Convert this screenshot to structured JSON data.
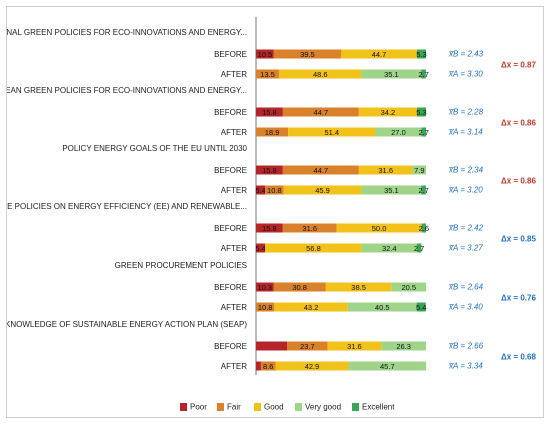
{
  "colors": {
    "Poor": "#b5262b",
    "Fair": "#d9822b",
    "Good": "#f2c21b",
    "Very good": "#9fd58a",
    "Excellent": "#3aa655",
    "mean_before": "#1f6fc5",
    "mean_after": "#1f6fc5",
    "delta_red": "#c0392b",
    "delta_blue": "#1f6fc5"
  },
  "chart_data": {
    "type": "bar",
    "stacked": true,
    "orientation": "horizontal",
    "xlim": [
      0,
      100
    ],
    "series_names": [
      "Poor",
      "Fair",
      "Good",
      "Very good",
      "Excellent"
    ],
    "legend": {
      "placement": "bottom",
      "entries": [
        "Poor",
        "Fair",
        "Good",
        "Very good",
        "Excellent"
      ]
    },
    "groups": [
      {
        "title": "NATIONAL GREEN POLICIES FOR ECO-INNOVATIONS AND ENERGY...",
        "delta": "Δx̅ = 0.87",
        "delta_color": "red",
        "rows": [
          {
            "label": "BEFORE",
            "values": [
              10.5,
              39.5,
              44.7,
              0,
              5.3
            ],
            "labels": [
              "10.5",
              "39.5",
              "44.7",
              "",
              "5.3"
            ],
            "mean": "x̅B = 2.43"
          },
          {
            "label": "AFTER",
            "values": [
              0,
              13.5,
              48.6,
              35.1,
              2.7
            ],
            "labels": [
              "",
              "13.5",
              "48.6",
              "35.1",
              "2.7"
            ],
            "mean": "x̅A = 3.30"
          }
        ]
      },
      {
        "title": "EUROPEAN  GREEN POLICIES FOR ECO-INNOVATIONS AND ENERGY...",
        "delta": "Δx̅ = 0.86",
        "delta_color": "red",
        "rows": [
          {
            "label": "BEFORE",
            "values": [
              15.8,
              44.7,
              34.2,
              0,
              5.3
            ],
            "labels": [
              "15.8",
              "44.7",
              "34.2",
              "",
              "5.3"
            ],
            "mean": "x̅B = 2.28"
          },
          {
            "label": "AFTER",
            "values": [
              0,
              18.9,
              51.4,
              27.0,
              2.7
            ],
            "labels": [
              "",
              "18.9",
              "51.4",
              "27.0",
              "2.7"
            ],
            "mean": "x̅A = 3.14"
          }
        ]
      },
      {
        "title": "POLICY ENERGY GOALS OF THE EU UNTIL 2030",
        "delta": "Δx̅ = 0.86",
        "delta_color": "red",
        "rows": [
          {
            "label": "BEFORE",
            "values": [
              15.8,
              44.7,
              31.6,
              7.9,
              0
            ],
            "labels": [
              "15.8",
              "44.7",
              "31.6",
              "7.9",
              ""
            ],
            "mean": "x̅B = 2.34"
          },
          {
            "label": "AFTER",
            "values": [
              5.4,
              10.8,
              45.9,
              35.1,
              2.7
            ],
            "labels": [
              "5.4",
              "10.8",
              "45.9",
              "35.1",
              "2.7"
            ],
            "mean": "x̅A = 3.20"
          }
        ]
      },
      {
        "title": "INNOVATIVE POLICIES ON ENERGY EFFICIENCY (EE) AND RENEWABLE...",
        "delta": "Δx̅ = 0.85",
        "delta_color": "blue",
        "rows": [
          {
            "label": "BEFORE",
            "values": [
              15.8,
              31.6,
              50.0,
              0,
              2.6
            ],
            "labels": [
              "15.8",
              "31.6",
              "50.0",
              "",
              "2.6"
            ],
            "mean": "x̅B = 2.42"
          },
          {
            "label": "AFTER",
            "values": [
              5.4,
              0,
              56.8,
              32.4,
              2.7
            ],
            "labels": [
              "5.4",
              "",
              "56.8",
              "32.4",
              "2.7"
            ],
            "mean": "x̅A = 3.27"
          }
        ]
      },
      {
        "title": "GREEN PROCUREMENT POLICIES",
        "delta": "Δx̅ = 0.76",
        "delta_color": "blue",
        "rows": [
          {
            "label": "BEFORE",
            "values": [
              10.3,
              30.8,
              38.5,
              20.5,
              0
            ],
            "labels": [
              "10.3",
              "30.8",
              "38.5",
              "20.5",
              ""
            ],
            "mean": "x̅B = 2.64"
          },
          {
            "label": "AFTER",
            "values": [
              0,
              10.8,
              43.2,
              40.5,
              5.4
            ],
            "labels": [
              "",
              "10.8",
              "43.2",
              "40.5",
              "5.4"
            ],
            "mean": "x̅A = 3.40"
          }
        ]
      },
      {
        "title": "KNOWLEDGE OF SUSTAINABLE ENERGY ACTION PLAN (SEAP)",
        "delta": "Δx̅ = 0.68",
        "delta_color": "blue",
        "rows": [
          {
            "label": "BEFORE",
            "values": [
              18.4,
              23.7,
              31.6,
              26.3,
              0
            ],
            "labels": [
              "",
              "23.7",
              "31.6",
              "26.3",
              ""
            ],
            "mean": "x̅B = 2.66"
          },
          {
            "label": "AFTER",
            "values": [
              2.9,
              8.6,
              42.9,
              45.7,
              0
            ],
            "labels": [
              "",
              "8.6",
              "42.9",
              "45.7",
              ""
            ],
            "mean": "x̅A = 3.34"
          }
        ]
      }
    ]
  }
}
